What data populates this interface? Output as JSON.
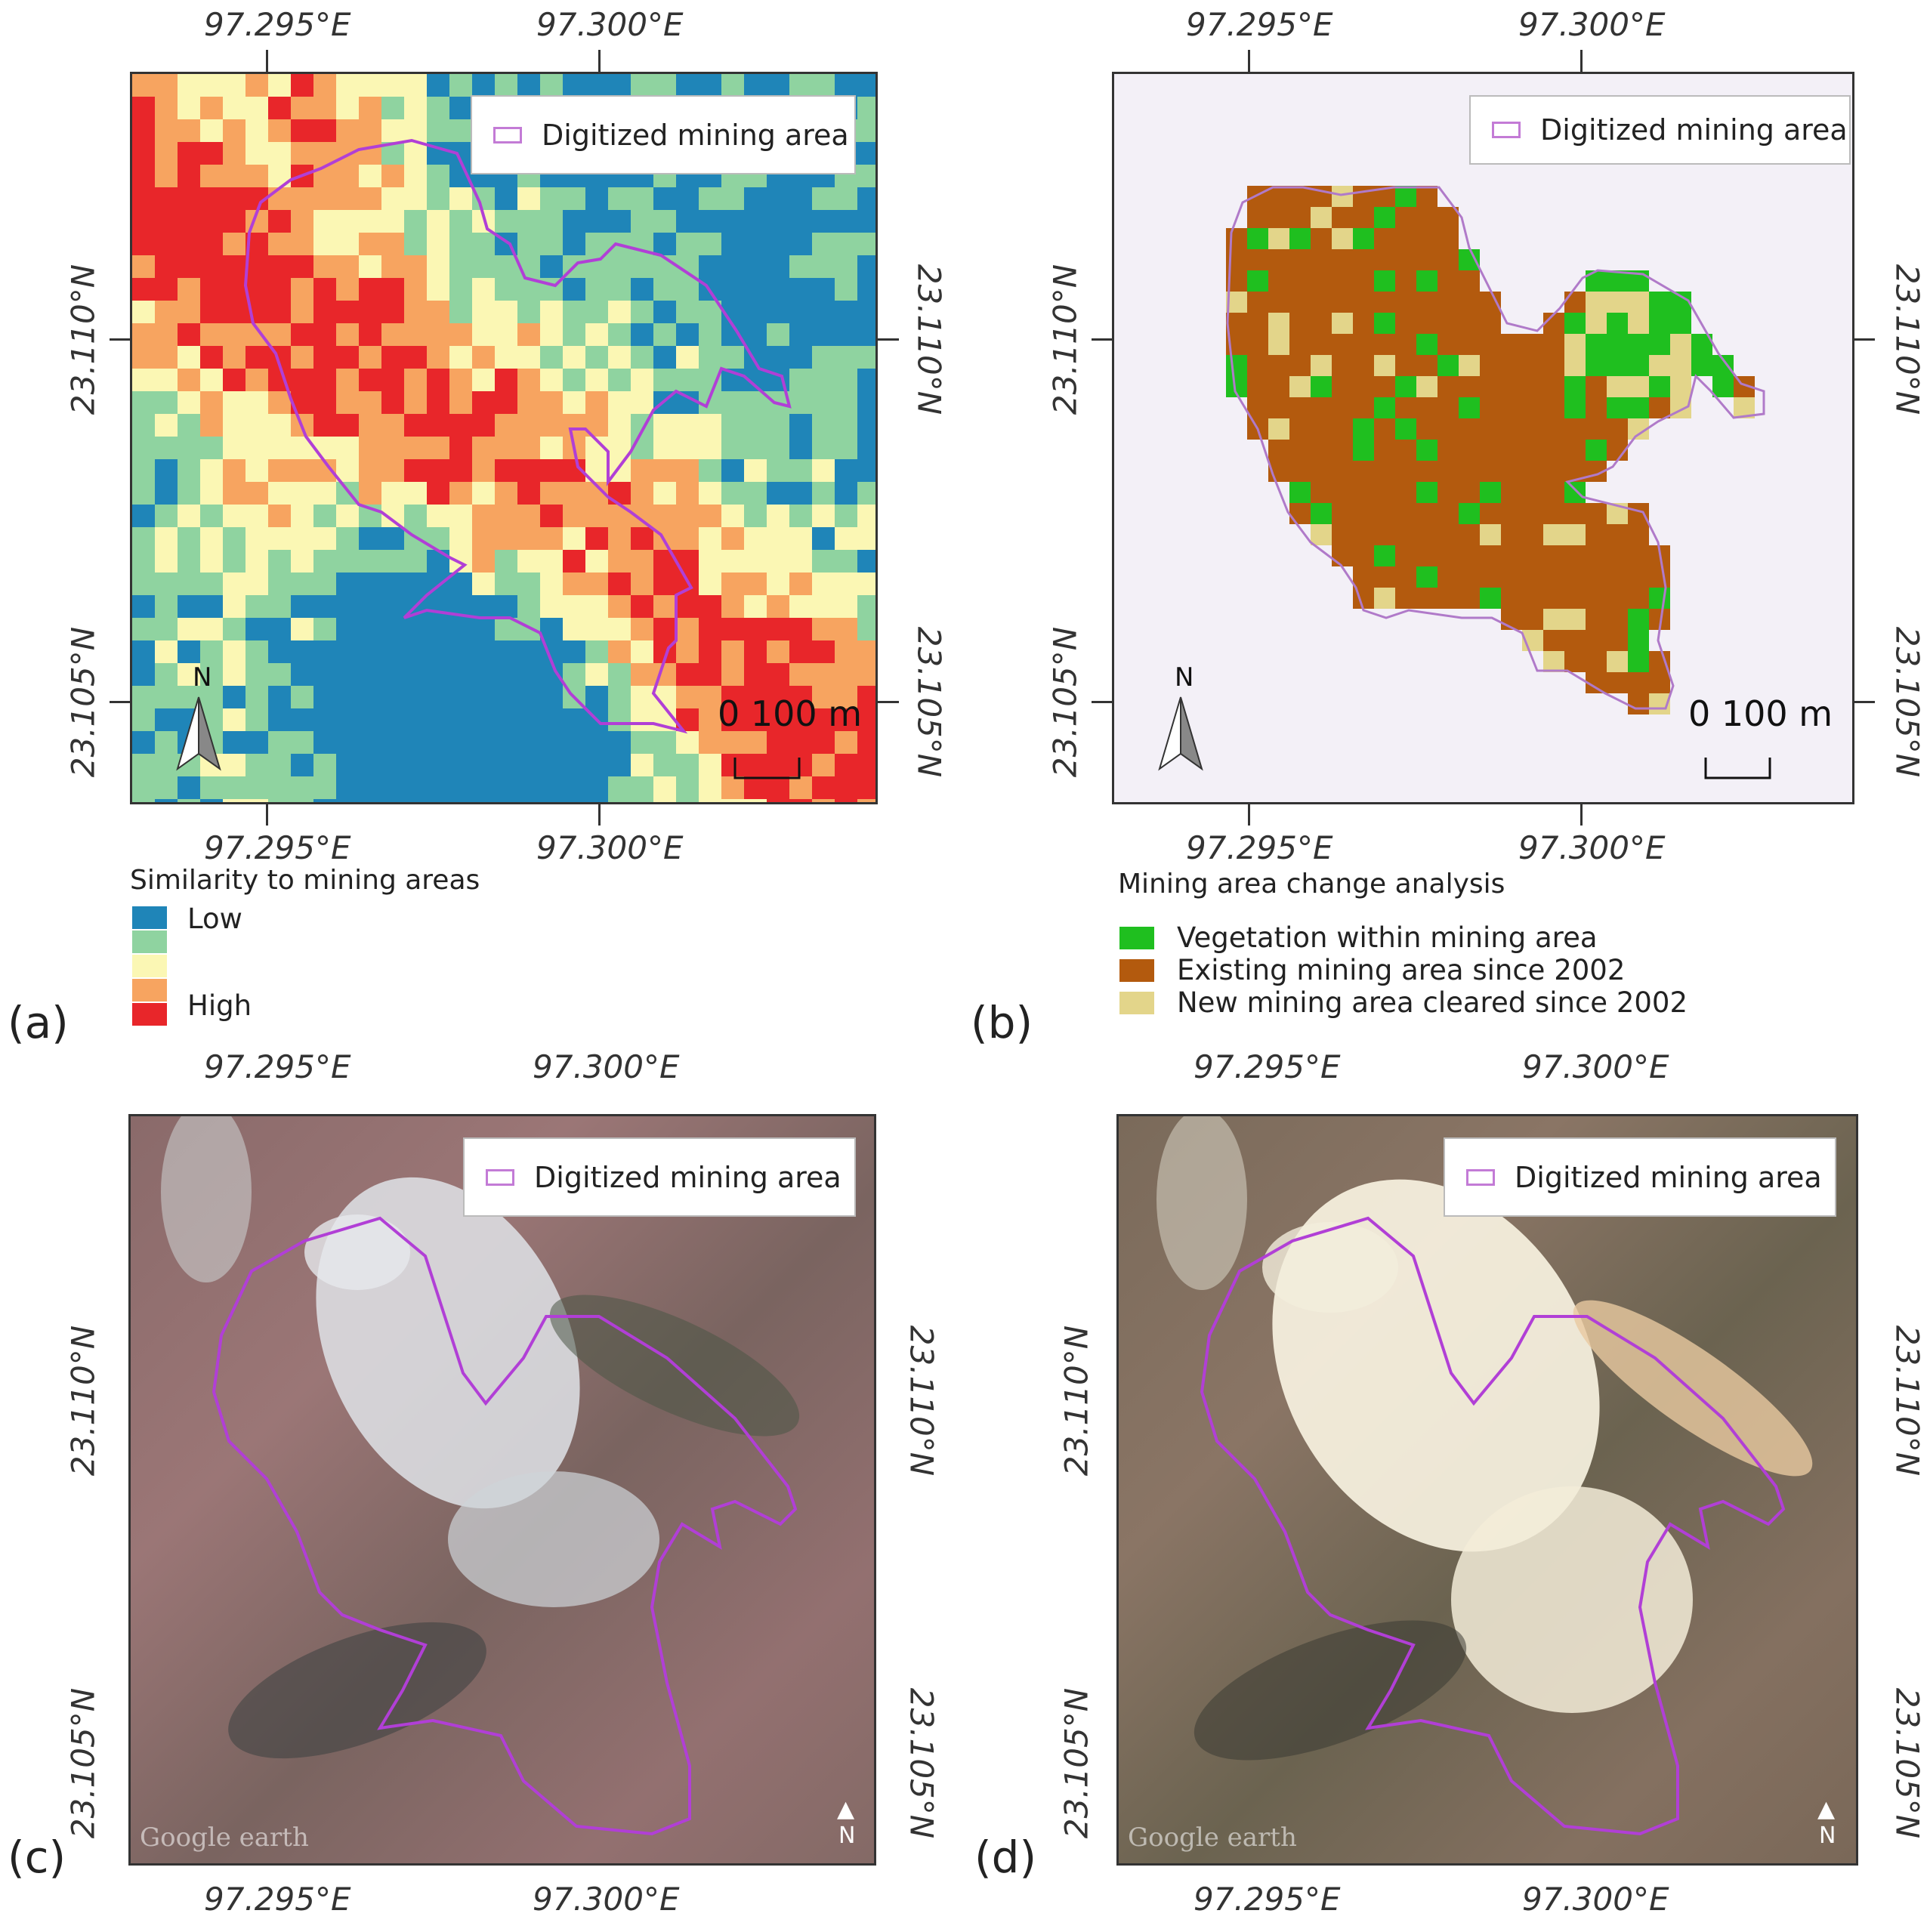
{
  "panels": {
    "a": {
      "letter": "(a)",
      "top_lon": [
        "97.295°E",
        "97.300°E"
      ],
      "bottom_lon": [
        "97.295°E",
        "97.300°E"
      ],
      "left_lat": [
        "23.110°N",
        "23.105°N"
      ],
      "right_lat": [
        "23.110°N",
        "23.105°N"
      ],
      "legend_box_label": "Digitized mining area",
      "scale_label": "0  100 m",
      "north_label": "N",
      "legend_title": "Similarity to mining areas",
      "legend_items": [
        {
          "label": "Low",
          "color": "#1f85b8"
        },
        {
          "label": "",
          "color": "#8fd3a0"
        },
        {
          "label": "",
          "color": "#fbf7b4"
        },
        {
          "label": "",
          "color": "#f7a460"
        },
        {
          "label": "High",
          "color": "#e8262a"
        }
      ]
    },
    "b": {
      "letter": "(b)",
      "top_lon": [
        "97.295°E",
        "97.300°E"
      ],
      "bottom_lon": [
        "97.295°E",
        "97.300°E"
      ],
      "left_lat": [
        "23.110°N",
        "23.105°N"
      ],
      "right_lat": [
        "23.110°N",
        "23.105°N"
      ],
      "legend_box_label": "Digitized mining area",
      "scale_label": "0  100 m",
      "north_label": "N",
      "legend_title": "Mining area change analysis",
      "legend_items": [
        {
          "label": "Vegetation within mining area",
          "color": "#1fbf1f"
        },
        {
          "label": "Existing mining area since 2002",
          "color": "#b35a0e"
        },
        {
          "label": "New mining area cleared since 2002",
          "color": "#e3d58a"
        }
      ]
    },
    "c": {
      "letter": "(c)",
      "top_lon": [
        "97.295°E",
        "97.300°E"
      ],
      "bottom_lon": [
        "97.295°E",
        "97.300°E"
      ],
      "left_lat": [
        "23.110°N",
        "23.105°N"
      ],
      "right_lat": [
        "23.110°N",
        "23.105°N"
      ],
      "legend_box_label": "Digitized mining area",
      "watermark": "Google earth",
      "north_label": "N"
    },
    "d": {
      "letter": "(d)",
      "top_lon": [
        "97.295°E",
        "97.300°E"
      ],
      "bottom_lon": [
        "97.295°E",
        "97.300°E"
      ],
      "left_lat": [
        "23.110°N",
        "23.105°N"
      ],
      "right_lat": [
        "23.110°N",
        "23.105°N"
      ],
      "legend_box_label": "Digitized mining area",
      "watermark": "Google earth",
      "north_label": "N"
    }
  },
  "colors": {
    "outline": "#b13fd6",
    "low": "#1f85b8",
    "mid_low": "#8fd3a0",
    "mid": "#fbf7b4",
    "mid_high": "#f7a460",
    "high": "#e8262a",
    "vegetation": "#1fbf1f",
    "existing": "#b35a0e",
    "new_cleared": "#e3d58a",
    "map_background_b": "#f3f0f7"
  }
}
